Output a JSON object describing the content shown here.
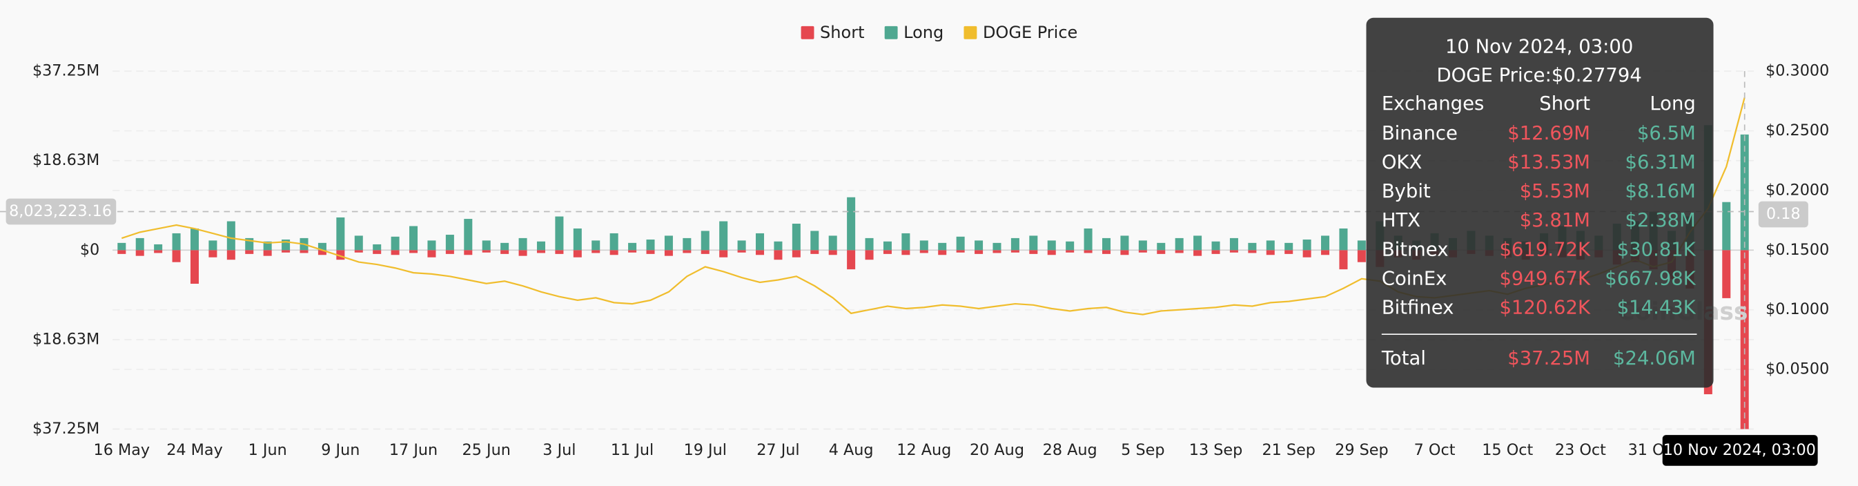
{
  "chart_data": {
    "type": "bar",
    "legend": "top",
    "categories": [
      "16 May",
      null,
      null,
      null,
      "24 May",
      null,
      null,
      null,
      "1 Jun",
      null,
      null,
      null,
      "9 Jun",
      null,
      null,
      null,
      "17 Jun",
      null,
      null,
      null,
      "25 Jun",
      null,
      null,
      null,
      "3 Jul",
      null,
      null,
      null,
      "11 Jul",
      null,
      null,
      null,
      "19 Jul",
      null,
      null,
      null,
      "27 Jul",
      null,
      null,
      null,
      "4 Aug",
      null,
      null,
      null,
      "12 Aug",
      null,
      null,
      null,
      "20 Aug",
      null,
      null,
      null,
      "28 Aug",
      null,
      null,
      null,
      "5 Sep",
      null,
      null,
      null,
      "13 Sep",
      null,
      null,
      null,
      "21 Sep",
      null,
      null,
      null,
      "29 Sep",
      null,
      null,
      null,
      "7 Oct",
      null,
      null,
      null,
      "15 Oct",
      null,
      null,
      null,
      "23 Oct",
      null,
      null,
      null,
      "31 Oct",
      null,
      null,
      null,
      null,
      null
    ],
    "series": [
      {
        "name": "Short",
        "color": "#e5474f",
        "values": [
          -0.8,
          -1.2,
          -0.6,
          -2.5,
          -7.0,
          -1.5,
          -2.0,
          -0.8,
          -1.2,
          -0.5,
          -0.6,
          -1.0,
          -2.0,
          -0.5,
          -0.8,
          -1.0,
          -0.6,
          -1.5,
          -0.8,
          -1.0,
          -0.5,
          -0.8,
          -1.2,
          -0.6,
          -0.8,
          -1.5,
          -0.6,
          -1.0,
          -0.5,
          -0.8,
          -1.2,
          -0.6,
          -0.8,
          -1.5,
          -0.5,
          -1.0,
          -2.0,
          -1.5,
          -0.8,
          -1.0,
          -4.0,
          -2.0,
          -0.8,
          -1.0,
          -0.6,
          -1.0,
          -0.5,
          -0.8,
          -0.6,
          -0.5,
          -0.8,
          -1.0,
          -0.5,
          -0.6,
          -0.8,
          -1.0,
          -0.5,
          -0.8,
          -0.6,
          -1.2,
          -0.8,
          -0.5,
          -0.6,
          -1.0,
          -0.8,
          -1.5,
          -1.0,
          -4.0,
          -2.5,
          -3.5,
          -1.5,
          -2.0,
          -1.0,
          -1.5,
          -0.8,
          -1.2,
          -1.5,
          -2.0,
          -1.0,
          -1.5,
          -2.0,
          -1.5,
          -3.0,
          -2.5,
          -4.0,
          -6.0,
          -8.0,
          -30.0,
          -10.0,
          -37.25
        ]
      },
      {
        "name": "Long",
        "color": "#4fa891",
        "values": [
          1.5,
          2.5,
          1.2,
          3.5,
          4.5,
          2.0,
          6.0,
          2.5,
          1.8,
          2.2,
          2.5,
          1.5,
          6.8,
          3.0,
          1.2,
          2.8,
          5.0,
          2.0,
          3.2,
          6.5,
          2.0,
          1.5,
          2.5,
          1.8,
          7.0,
          4.5,
          2.0,
          3.5,
          1.5,
          2.2,
          3.0,
          2.5,
          4.0,
          6.0,
          2.0,
          3.5,
          1.8,
          5.5,
          4.0,
          3.0,
          11.0,
          2.5,
          1.8,
          3.5,
          2.0,
          1.5,
          2.8,
          2.0,
          1.5,
          2.5,
          3.0,
          2.0,
          1.8,
          4.5,
          2.5,
          3.0,
          2.0,
          1.5,
          2.5,
          3.0,
          1.8,
          2.5,
          1.5,
          2.0,
          1.5,
          2.2,
          3.0,
          4.5,
          2.0,
          6.0,
          3.0,
          2.0,
          3.5,
          2.5,
          4.0,
          3.0,
          2.5,
          1.8,
          3.5,
          5.0,
          4.0,
          3.0,
          5.5,
          6.0,
          8.0,
          4.0,
          7.0,
          26.0,
          10.0,
          24.06
        ]
      },
      {
        "name": "DOGE Price",
        "type": "line",
        "axis": "y2",
        "color": "#f0bd2d",
        "values": [
          0.16,
          0.165,
          0.168,
          0.171,
          0.168,
          0.164,
          0.16,
          0.158,
          0.156,
          0.157,
          0.155,
          0.15,
          0.145,
          0.14,
          0.138,
          0.135,
          0.131,
          0.13,
          0.128,
          0.125,
          0.122,
          0.124,
          0.12,
          0.115,
          0.111,
          0.108,
          0.11,
          0.106,
          0.105,
          0.108,
          0.115,
          0.128,
          0.136,
          0.132,
          0.127,
          0.123,
          0.125,
          0.128,
          0.12,
          0.11,
          0.097,
          0.1,
          0.103,
          0.101,
          0.102,
          0.104,
          0.103,
          0.101,
          0.103,
          0.105,
          0.104,
          0.101,
          0.099,
          0.101,
          0.102,
          0.098,
          0.096,
          0.099,
          0.1,
          0.101,
          0.102,
          0.104,
          0.103,
          0.106,
          0.107,
          0.109,
          0.111,
          0.118,
          0.126,
          0.124,
          0.115,
          0.111,
          0.11,
          0.112,
          0.114,
          0.116,
          0.113,
          0.118,
          0.121,
          0.126,
          0.125,
          0.13,
          0.136,
          0.142,
          0.136,
          0.14,
          0.165,
          0.185,
          0.22,
          0.27794
        ]
      }
    ],
    "ylim": [
      -37.25,
      37.25
    ],
    "yticks": [
      {
        "value": -37.25,
        "label": "$37.25M"
      },
      {
        "value": -18.63,
        "label": "$18.63M"
      },
      {
        "value": 0,
        "label": "$0"
      },
      {
        "value": 18.63,
        "label": "$18.63M"
      },
      {
        "value": 37.25,
        "label": "$37.25M"
      }
    ],
    "y2lim": [
      0,
      0.3
    ],
    "y2ticks": [
      {
        "value": 0.05,
        "label": "$0.0500"
      },
      {
        "value": 0.1,
        "label": "$0.1000"
      },
      {
        "value": 0.15,
        "label": "$0.1500"
      },
      {
        "value": 0.2,
        "label": "$0.2000"
      },
      {
        "value": 0.25,
        "label": "$0.2500"
      },
      {
        "value": 0.3,
        "label": "$0.3000"
      }
    ],
    "grid": true,
    "crosshair": {
      "x_label": "10 Nov 2024, 03:00",
      "y": {
        "value": 8.02322316,
        "label": "8,023,223.16"
      },
      "y2": {
        "value": 0.18,
        "label": "0.18"
      }
    },
    "watermark": "CoinGlass",
    "tooltip": {
      "title": "10 Nov 2024, 03:00",
      "price": "DOGE Price:$0.27794",
      "columns": [
        "Exchanges",
        "Short",
        "Long"
      ],
      "rows": [
        [
          "Binance",
          "$12.69M",
          "$6.5M"
        ],
        [
          "OKX",
          "$13.53M",
          "$6.31M"
        ],
        [
          "Bybit",
          "$5.53M",
          "$8.16M"
        ],
        [
          "HTX",
          "$3.81M",
          "$2.38M"
        ],
        [
          "Bitmex",
          "$619.72K",
          "$30.81K"
        ],
        [
          "CoinEx",
          "$949.67K",
          "$667.98K"
        ],
        [
          "Bitfinex",
          "$120.62K",
          "$14.43K"
        ]
      ],
      "total": [
        "Total",
        "$37.25M",
        "$24.06M"
      ]
    }
  }
}
